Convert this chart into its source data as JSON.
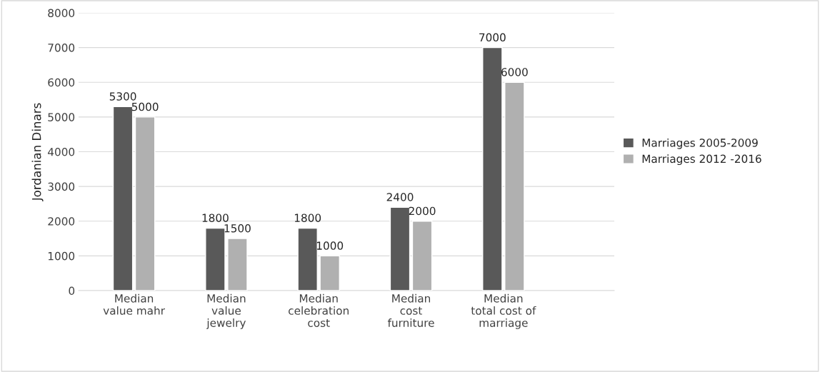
{
  "chart_data": {
    "type": "bar",
    "ylabel": "Jordanian Dinars",
    "categories": [
      "Median\nvalue mahr",
      "Median\nvalue\njewelry",
      "Median\ncelebration\ncost",
      "Median\ncost\nfurniture",
      "Median\ntotal cost of\nmarriage"
    ],
    "series": [
      {
        "name": "Marriages 2005-2009",
        "color": "#595959",
        "values": [
          5300,
          1800,
          1800,
          2400,
          7000
        ]
      },
      {
        "name": "Marriages 2012 -2016",
        "color": "#b0b0b0",
        "values": [
          5000,
          1500,
          1000,
          2000,
          6000
        ]
      }
    ],
    "ylim": [
      0,
      8000
    ],
    "yticks": [
      0,
      1000,
      2000,
      3000,
      4000,
      5000,
      6000,
      7000,
      8000
    ],
    "grid": "y",
    "legend": "right",
    "data_labels": true
  }
}
